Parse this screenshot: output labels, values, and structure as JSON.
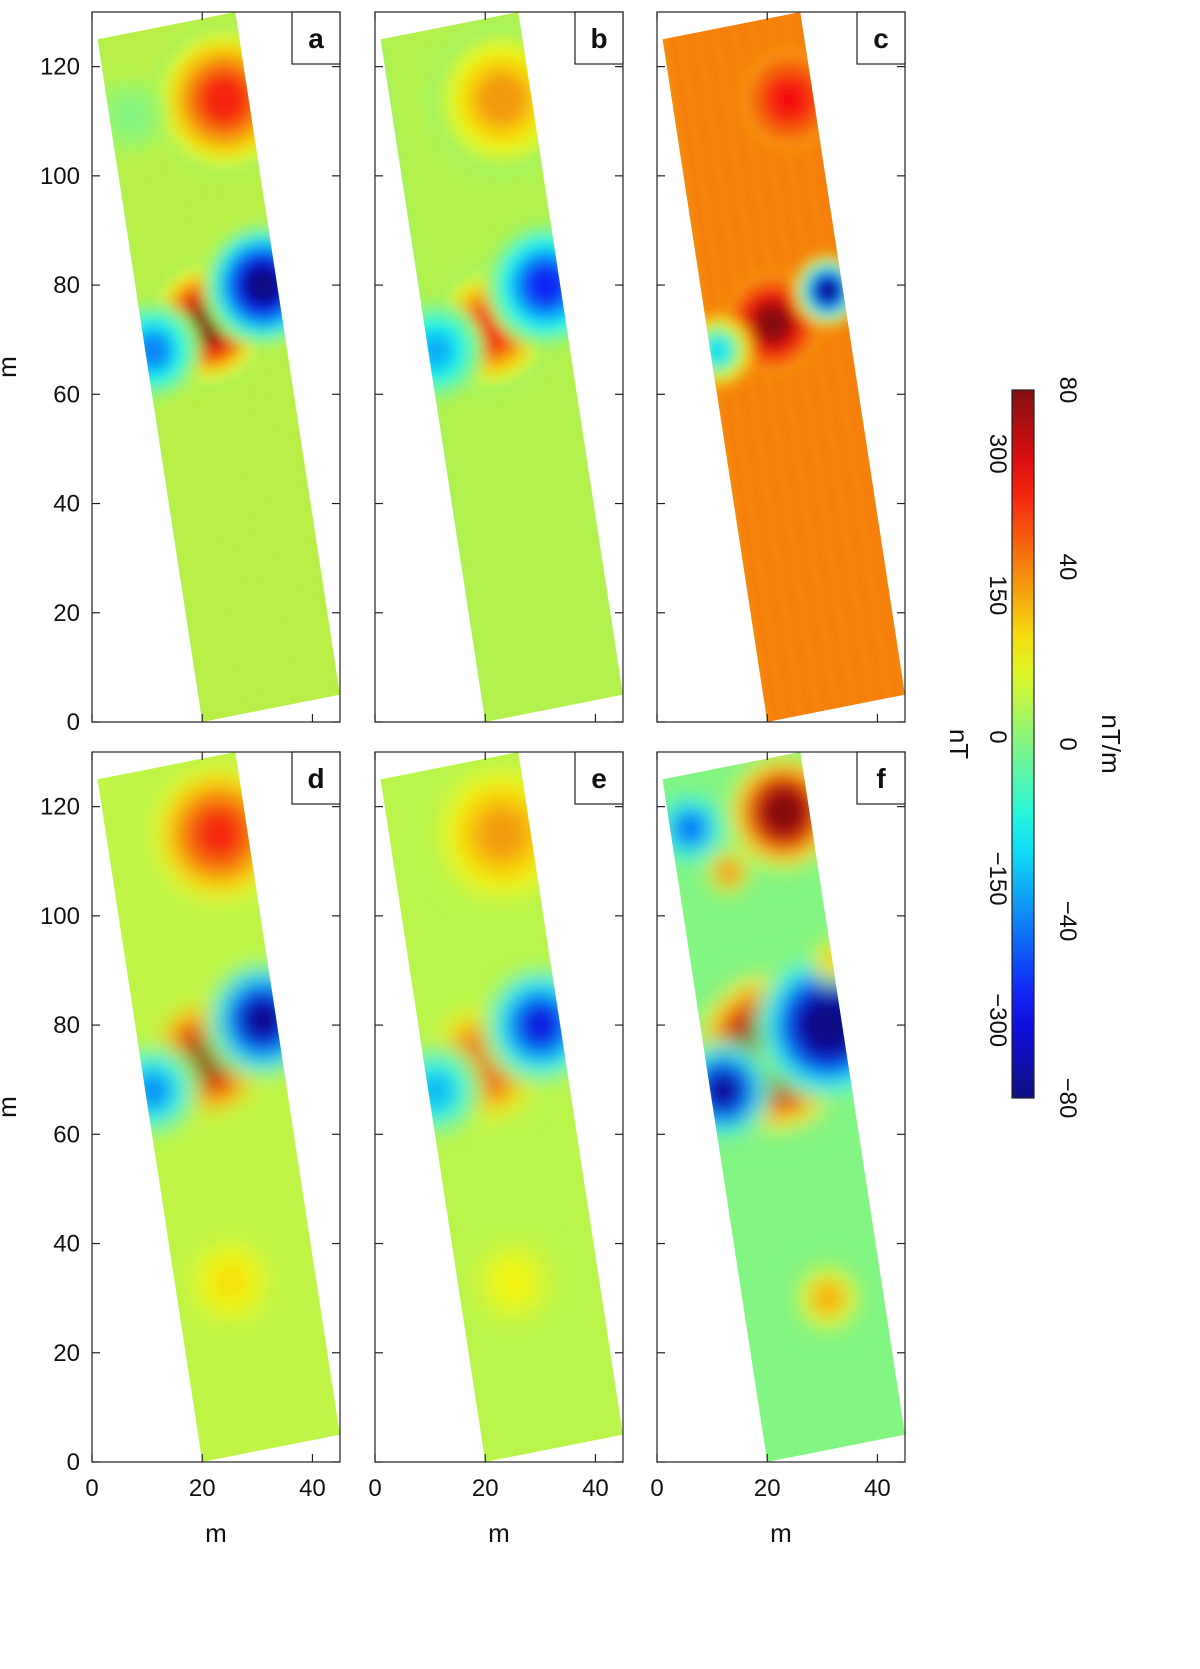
{
  "chart_data": {
    "type": "heatmap",
    "panels": [
      {
        "id": "a",
        "letter": "a",
        "mode": "gradient",
        "stripes": true,
        "x_ticks": [],
        "y_ticks": [
          0,
          20,
          40,
          60,
          80,
          100,
          120
        ],
        "y_label": "m",
        "x_label": "",
        "xlim": [
          0,
          45
        ],
        "ylim": [
          0,
          130
        ],
        "background": 0.08,
        "anomalies": [
          {
            "x": 21,
            "y": 73,
            "r": 5,
            "v": 1.0
          },
          {
            "x": 31,
            "y": 80,
            "r": 5,
            "v": -1.0
          },
          {
            "x": 11,
            "y": 68,
            "r": 4,
            "v": -0.5
          },
          {
            "x": 24,
            "y": 114,
            "r": 6,
            "v": 0.7
          },
          {
            "x": 7,
            "y": 111,
            "r": 3,
            "v": 0.0
          }
        ]
      },
      {
        "id": "b",
        "letter": "b",
        "mode": "gradient",
        "stripes": true,
        "x_ticks": [],
        "y_ticks": [],
        "y_label": "",
        "x_label": "",
        "xlim": [
          0,
          45
        ],
        "ylim": [
          0,
          130
        ],
        "background": 0.06,
        "anomalies": [
          {
            "x": 21,
            "y": 72,
            "r": 5,
            "v": 0.7
          },
          {
            "x": 31,
            "y": 80,
            "r": 5,
            "v": -0.7
          },
          {
            "x": 11,
            "y": 68,
            "r": 4,
            "v": -0.4
          },
          {
            "x": 23,
            "y": 114,
            "r": 6,
            "v": 0.45
          }
        ]
      },
      {
        "id": "c",
        "letter": "c",
        "mode": "gradient",
        "stripes": true,
        "x_ticks": [],
        "y_ticks": [],
        "y_label": "",
        "x_label": "",
        "xlim": [
          0,
          45
        ],
        "ylim": [
          0,
          130
        ],
        "background": 0.45,
        "anomalies": [
          {
            "x": 21,
            "y": 73,
            "r": 4,
            "v": 1.0
          },
          {
            "x": 31,
            "y": 79,
            "r": 3,
            "v": -1.0
          },
          {
            "x": 11,
            "y": 68,
            "r": 3,
            "v": -0.3
          },
          {
            "x": 24,
            "y": 114,
            "r": 4,
            "v": 0.75
          }
        ]
      },
      {
        "id": "d",
        "letter": "d",
        "mode": "field",
        "stripes": false,
        "x_ticks": [
          0,
          20,
          40
        ],
        "y_ticks": [
          0,
          20,
          40,
          60,
          80,
          100,
          120
        ],
        "y_label": "m",
        "x_label": "m",
        "xlim": [
          0,
          45
        ],
        "ylim": [
          0,
          130
        ],
        "background": 0.13,
        "anomalies": [
          {
            "x": 21,
            "y": 74,
            "r": 5,
            "v": 1.0
          },
          {
            "x": 31,
            "y": 81,
            "r": 5,
            "v": -1.0
          },
          {
            "x": 11,
            "y": 68,
            "r": 4,
            "v": -0.5
          },
          {
            "x": 23,
            "y": 115,
            "r": 6,
            "v": 0.7
          },
          {
            "x": 25,
            "y": 33,
            "r": 4,
            "v": 0.3
          }
        ]
      },
      {
        "id": "e",
        "letter": "e",
        "mode": "field",
        "stripes": false,
        "x_ticks": [
          0,
          20,
          40
        ],
        "y_ticks": [],
        "y_label": "",
        "x_label": "m",
        "xlim": [
          0,
          45
        ],
        "ylim": [
          0,
          130
        ],
        "background": 0.12,
        "anomalies": [
          {
            "x": 20,
            "y": 73,
            "r": 5,
            "v": 0.75
          },
          {
            "x": 30,
            "y": 80,
            "r": 5,
            "v": -0.8
          },
          {
            "x": 11,
            "y": 68,
            "r": 4,
            "v": -0.4
          },
          {
            "x": 23,
            "y": 115,
            "r": 6,
            "v": 0.45
          },
          {
            "x": 25,
            "y": 33,
            "r": 4,
            "v": 0.25
          }
        ]
      },
      {
        "id": "f",
        "letter": "f",
        "mode": "field",
        "stripes": false,
        "x_ticks": [
          0,
          20,
          40
        ],
        "y_ticks": [],
        "y_label": "",
        "x_label": "m",
        "xlim": [
          0,
          45
        ],
        "ylim": [
          0,
          130
        ],
        "background": 0.0,
        "anomalies": [
          {
            "x": 21,
            "y": 75,
            "r": 7,
            "v": 1.4
          },
          {
            "x": 31,
            "y": 80,
            "r": 6,
            "v": -1.2
          },
          {
            "x": 12,
            "y": 68,
            "r": 4,
            "v": -1.0
          },
          {
            "x": 23,
            "y": 119,
            "r": 5,
            "v": 1.2
          },
          {
            "x": 6,
            "y": 116,
            "r": 3,
            "v": -0.6
          },
          {
            "x": 13,
            "y": 108,
            "r": 2,
            "v": 0.6
          },
          {
            "x": 31,
            "y": 30,
            "r": 3,
            "v": 0.45
          },
          {
            "x": 32,
            "y": 92,
            "r": 2,
            "v": 0.4
          }
        ]
      }
    ],
    "colorbar": {
      "colormap": "jet",
      "label_nT": "nT",
      "label_nTm": "nT/m",
      "ticks_nT": [
        "−300",
        "−150",
        "0",
        "150",
        "300"
      ],
      "ticks_nTm": [
        "−80",
        "−40",
        "0",
        "40",
        "80"
      ]
    }
  }
}
